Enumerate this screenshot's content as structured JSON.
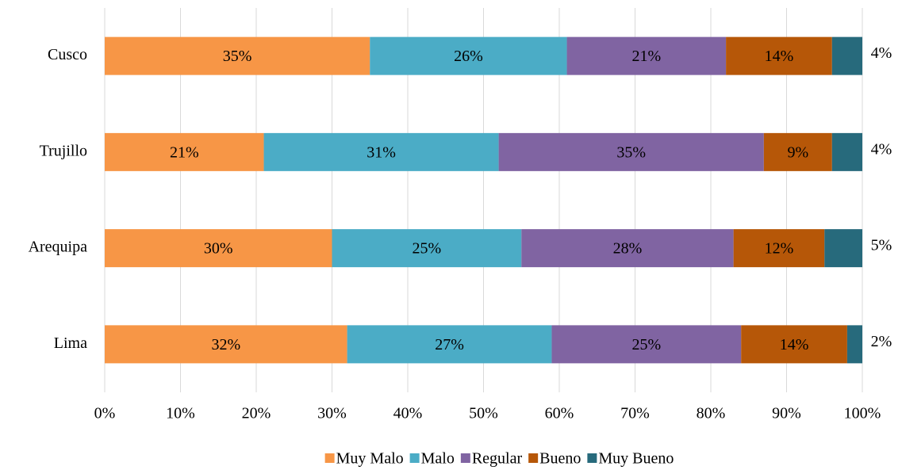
{
  "chart_data": {
    "type": "stacked-bar-horizontal",
    "categories": [
      "Cusco",
      "Trujillo",
      "Arequipa",
      "Lima"
    ],
    "series": [
      {
        "name": "Muy Malo",
        "color": "#F79646",
        "values": [
          35,
          21,
          30,
          32
        ],
        "value_labels": [
          "35%",
          "21%",
          "30%",
          "32%"
        ]
      },
      {
        "name": "Malo",
        "color": "#4BACC6",
        "values": [
          26,
          31,
          25,
          27
        ],
        "value_labels": [
          "26%",
          "31%",
          "25%",
          "27%"
        ]
      },
      {
        "name": "Regular",
        "color": "#8064A2",
        "values": [
          21,
          35,
          28,
          25
        ],
        "value_labels": [
          "21%",
          "35%",
          "28%",
          "25%"
        ]
      },
      {
        "name": "Bueno",
        "color": "#B65708",
        "values": [
          14,
          9,
          12,
          14
        ],
        "value_labels": [
          "14%",
          "9%",
          "12%",
          "14%"
        ]
      },
      {
        "name": "Muy Bueno",
        "color": "#276A7C",
        "values": [
          4,
          4,
          5,
          2
        ],
        "value_labels": [
          "4%",
          "4%",
          "5%",
          "2%"
        ]
      }
    ],
    "xlim": [
      0,
      100
    ],
    "xticks": [
      {
        "value": 0,
        "label": "0%"
      },
      {
        "value": 10,
        "label": "10%"
      },
      {
        "value": 20,
        "label": "20%"
      },
      {
        "value": 30,
        "label": "30%"
      },
      {
        "value": 40,
        "label": "40%"
      },
      {
        "value": 50,
        "label": "50%"
      },
      {
        "value": 60,
        "label": "60%"
      },
      {
        "value": 70,
        "label": "70%"
      },
      {
        "value": 80,
        "label": "80%"
      },
      {
        "value": 90,
        "label": "90%"
      },
      {
        "value": 100,
        "label": "100%"
      }
    ],
    "grid": true,
    "legend": "bottom"
  }
}
